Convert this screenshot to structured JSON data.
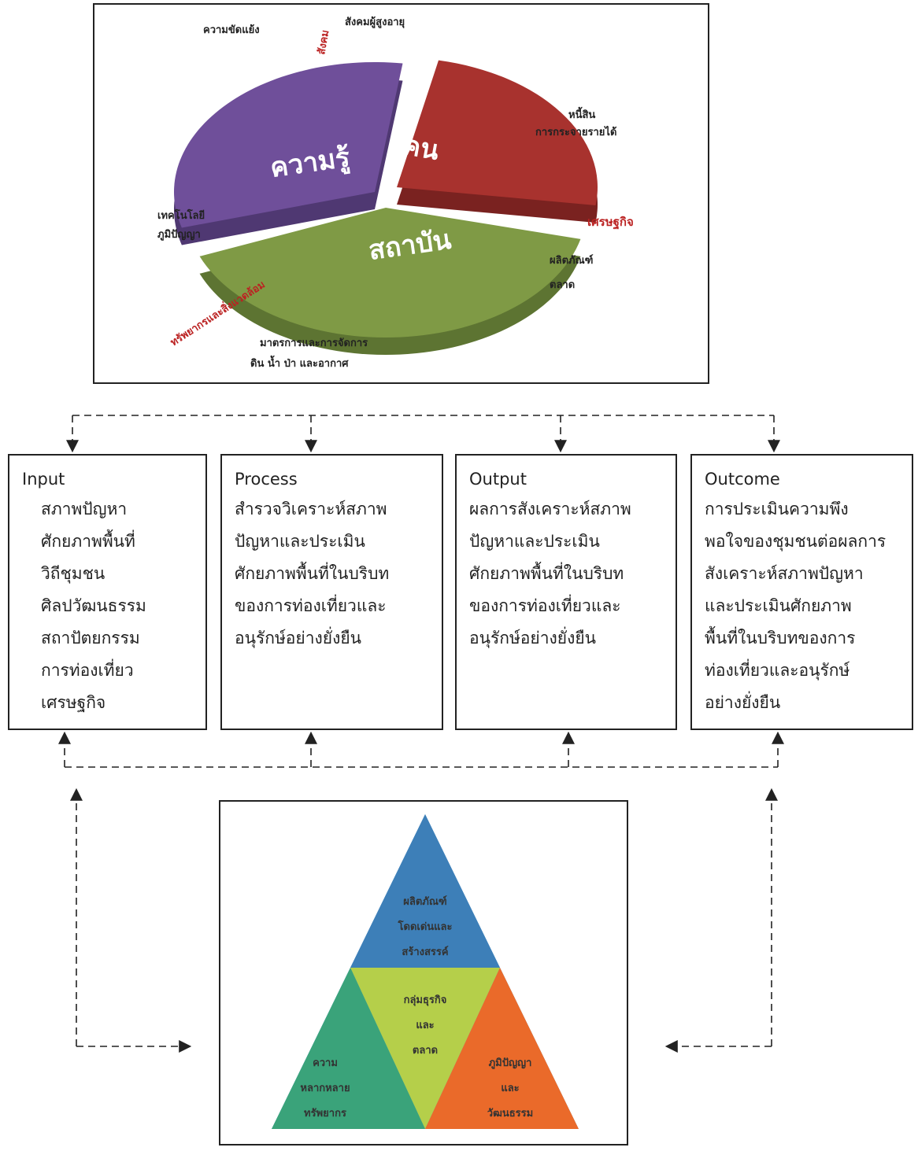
{
  "pie": {
    "slices": [
      {
        "label": "คน"
      },
      {
        "label": "สถาบัน"
      },
      {
        "label": "ความรู้"
      }
    ],
    "labels": {
      "conflict": "ความขัดแย้ง",
      "aging": "สังคมผู้สูงอายุ",
      "society": "สังคม",
      "debt": "หนี้สิน",
      "income": "การกระจายรายได้",
      "economy": "เศรษฐกิจ",
      "technology": "เทคโนโลยี",
      "wisdom": "ภูมิปัญญา",
      "product": "ผลิตภัณฑ์",
      "market": "ตลาด",
      "resources": "ทรัพยากรและสิ่งแวดล้อม",
      "measures": "มาตรการและการจัดการ",
      "elements": "ดิน น้ำ ป่า และอากาศ"
    }
  },
  "boxes": [
    {
      "title": "Input",
      "lines": [
        "สภาพปัญหา",
        "ศักยภาพพื้นที่",
        "วิถีชุมชน",
        "ศิลปวัฒนธรรม",
        "สถาปัตยกรรม",
        "การท่องเที่ยว",
        "เศรษฐกิจ"
      ]
    },
    {
      "title": "Process",
      "lines": [
        "สำรวจวิเคราะห์สภาพ",
        "ปัญหาและประเมิน",
        "ศักยภาพพื้นที่ในบริบท",
        "ของการท่องเที่ยวและ",
        "อนุรักษ์อย่างยั่งยืน"
      ]
    },
    {
      "title": "Output",
      "lines": [
        "ผลการสังเคราะห์สภาพ",
        "ปัญหาและประเมิน",
        "ศักยภาพพื้นที่ในบริบท",
        "ของการท่องเที่ยวและ",
        "อนุรักษ์อย่างยั่งยืน"
      ]
    },
    {
      "title": "Outcome",
      "lines": [
        "การประเมินความพึง",
        "พอใจของชุมชนต่อผลการ",
        "สังเคราะห์สภาพปัญหา",
        "และประเมินศักยภาพ",
        "พื้นที่ในบริบทของการ",
        "ท่องเที่ยวและอนุรักษ์",
        "อย่างยั่งยืน"
      ]
    }
  ],
  "triangle": {
    "top": [
      "ผลิตภัณฑ์",
      "โดดเด่นและ",
      "สร้างสรรค์"
    ],
    "center": [
      "กลุ่มธุรกิจ",
      "และ",
      "ตลาด"
    ],
    "left": [
      "ความ",
      "หลากหลาย",
      "ทรัพยากร"
    ],
    "right": [
      "ภูมิปัญญา",
      "และ",
      "วัฒนธรรม"
    ]
  }
}
